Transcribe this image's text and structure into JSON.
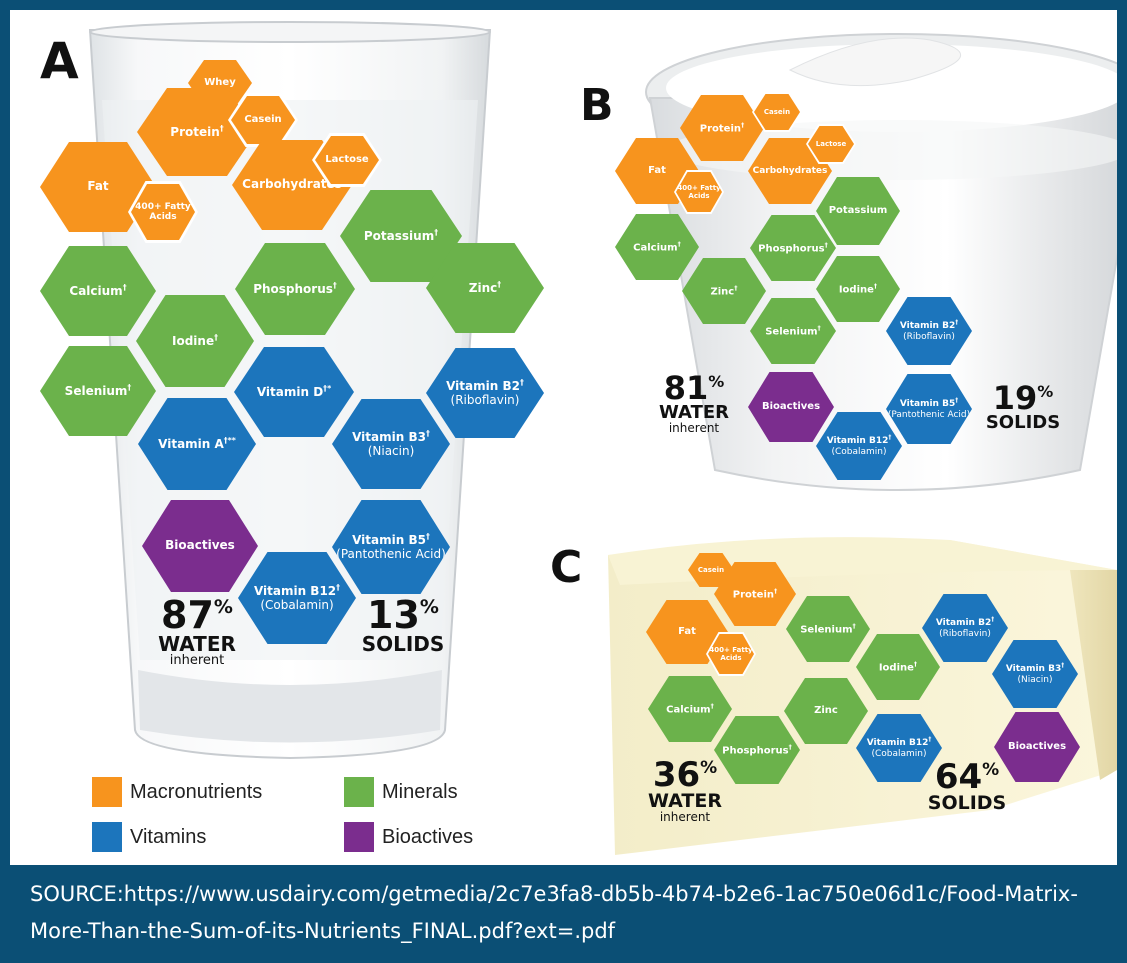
{
  "colors": {
    "macronutrients": "#f7941e",
    "minerals": "#6bb24b",
    "vitamins": "#1c75bc",
    "bioactives": "#7b2d8e",
    "frame": "#0b4f75"
  },
  "panels": {
    "A": {
      "letter": "A",
      "water_pct": "87",
      "water_label": "WATER",
      "water_note": "inherent",
      "solids_pct": "13",
      "solids_label": "SOLIDS",
      "hexes": {
        "whey": {
          "label": "Whey"
        },
        "casein": {
          "label": "Casein"
        },
        "protein": {
          "label": "Protein",
          "mark": "†"
        },
        "lactose": {
          "label": "Lactose"
        },
        "carbohydrates": {
          "label": "Carbohydrates"
        },
        "fat": {
          "label": "Fat"
        },
        "fatty_acids": {
          "label": "400+ Fatty Acids"
        },
        "potassium": {
          "label": "Potassium",
          "mark": "†"
        },
        "zinc": {
          "label": "Zinc",
          "mark": "†"
        },
        "calcium": {
          "label": "Calcium",
          "mark": "†"
        },
        "phosphorus": {
          "label": "Phosphorus",
          "mark": "†"
        },
        "iodine": {
          "label": "Iodine",
          "mark": "†"
        },
        "selenium": {
          "label": "Selenium",
          "mark": "†"
        },
        "vitamin_d": {
          "label": "Vitamin D",
          "mark": "†*"
        },
        "vitamin_b2": {
          "label": "Vitamin B2",
          "mark": "†",
          "sub": "(Riboflavin)"
        },
        "vitamin_a": {
          "label": "Vitamin A",
          "mark": "†**"
        },
        "vitamin_b3": {
          "label": "Vitamin B3",
          "mark": "†",
          "sub": "(Niacin)"
        },
        "bioactives": {
          "label": "Bioactives"
        },
        "vitamin_b5": {
          "label": "Vitamin B5",
          "mark": "†",
          "sub": "(Pantothenic Acid)"
        },
        "vitamin_b12": {
          "label": "Vitamin B12",
          "mark": "†",
          "sub": "(Cobalamin)"
        }
      }
    },
    "B": {
      "letter": "B",
      "water_pct": "81",
      "water_label": "WATER",
      "water_note": "inherent",
      "solids_pct": "19",
      "solids_label": "SOLIDS",
      "hexes": {
        "protein": {
          "label": "Protein",
          "mark": "†"
        },
        "casein": {
          "label": "Casein"
        },
        "lactose": {
          "label": "Lactose"
        },
        "fat": {
          "label": "Fat"
        },
        "fatty_acids": {
          "label": "400+ Fatty Acids"
        },
        "carbohydrates": {
          "label": "Carbohydrates"
        },
        "potassium": {
          "label": "Potassium"
        },
        "calcium": {
          "label": "Calcium",
          "mark": "†"
        },
        "phosphorus": {
          "label": "Phosphorus",
          "mark": "†"
        },
        "zinc": {
          "label": "Zinc",
          "mark": "†"
        },
        "iodine": {
          "label": "Iodine",
          "mark": "†"
        },
        "selenium": {
          "label": "Selenium",
          "mark": "†"
        },
        "vitamin_b2": {
          "label": "Vitamin B2",
          "mark": "†",
          "sub": "(Riboflavin)"
        },
        "bioactives": {
          "label": "Bioactives"
        },
        "vitamin_b5": {
          "label": "Vitamin B5",
          "mark": "†",
          "sub": "(Pantothenic Acid)"
        },
        "vitamin_b12": {
          "label": "Vitamin B12",
          "mark": "†",
          "sub": "(Cobalamin)"
        }
      }
    },
    "C": {
      "letter": "C",
      "water_pct": "36",
      "water_label": "WATER",
      "water_note": "inherent",
      "solids_pct": "64",
      "solids_label": "SOLIDS",
      "hexes": {
        "casein": {
          "label": "Casein"
        },
        "protein": {
          "label": "Protein",
          "mark": "†"
        },
        "fat": {
          "label": "Fat"
        },
        "fatty_acids": {
          "label": "400+ Fatty Acids"
        },
        "selenium": {
          "label": "Selenium",
          "mark": "†"
        },
        "vitamin_b2": {
          "label": "Vitamin B2",
          "mark": "†",
          "sub": "(Riboflavin)"
        },
        "iodine": {
          "label": "Iodine",
          "mark": "†"
        },
        "vitamin_b3": {
          "label": "Vitamin B3",
          "mark": "†",
          "sub": "(Niacin)"
        },
        "calcium": {
          "label": "Calcium",
          "mark": "†"
        },
        "zinc": {
          "label": "Zinc"
        },
        "phosphorus": {
          "label": "Phosphorus",
          "mark": "†"
        },
        "vitamin_b12": {
          "label": "Vitamin B12",
          "mark": "†",
          "sub": "(Cobalamin)"
        },
        "bioactives": {
          "label": "Bioactives"
        }
      }
    }
  },
  "legend": {
    "macronutrients": "Macronutrients",
    "minerals": "Minerals",
    "vitamins": "Vitamins",
    "bioactives": "Bioactives"
  },
  "source": "SOURCE:https://www.usdairy.com/getmedia/2c7e3fa8-db5b-4b74-b2e6-1ac750e06d1c/Food-Matrix-More-Than-the-Sum-of-its-Nutrients_FINAL.pdf?ext=.pdf"
}
